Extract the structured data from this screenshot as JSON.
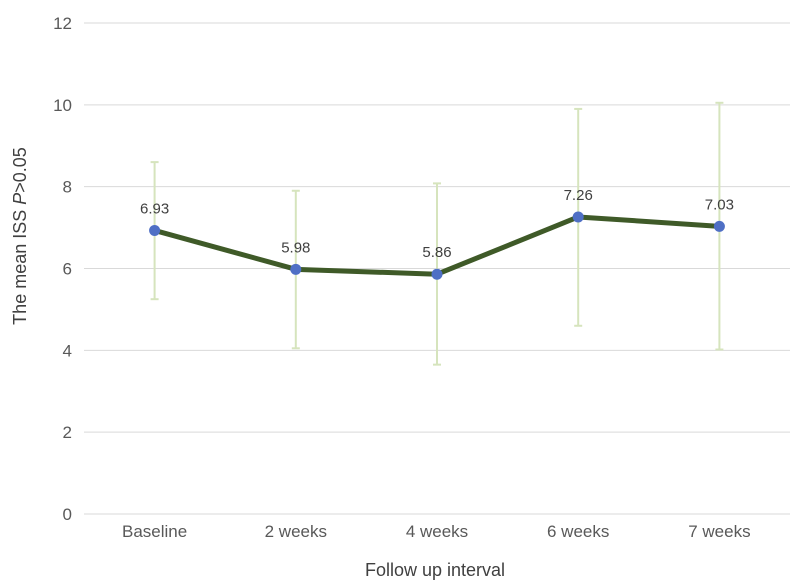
{
  "chart_data": {
    "type": "line",
    "xlabel": "Follow up interval",
    "ylabel_parts": {
      "prefix": "The mean ISS ",
      "italic": "P",
      "suffix": ">0.05"
    },
    "ylim": [
      0,
      12
    ],
    "yticks": [
      "0",
      "2",
      "4",
      "6",
      "8",
      "10",
      "12"
    ],
    "categories": [
      "Baseline",
      "2 weeks",
      "4 weeks",
      "6 weeks",
      "7 weeks"
    ],
    "series": [
      {
        "values": [
          6.93,
          5.98,
          5.86,
          7.26,
          7.03
        ],
        "labels": [
          "6.93",
          "5.98",
          "5.86",
          "7.26",
          "7.03"
        ],
        "error_low": [
          5.25,
          4.05,
          3.65,
          4.6,
          4.02
        ],
        "error_high": [
          8.6,
          7.9,
          8.08,
          9.9,
          10.05
        ],
        "line_color": "#3f5a28",
        "marker_color": "#4f6fc5",
        "error_bar_color": "#d6e4bd"
      }
    ],
    "grid": true,
    "legend": "none"
  }
}
